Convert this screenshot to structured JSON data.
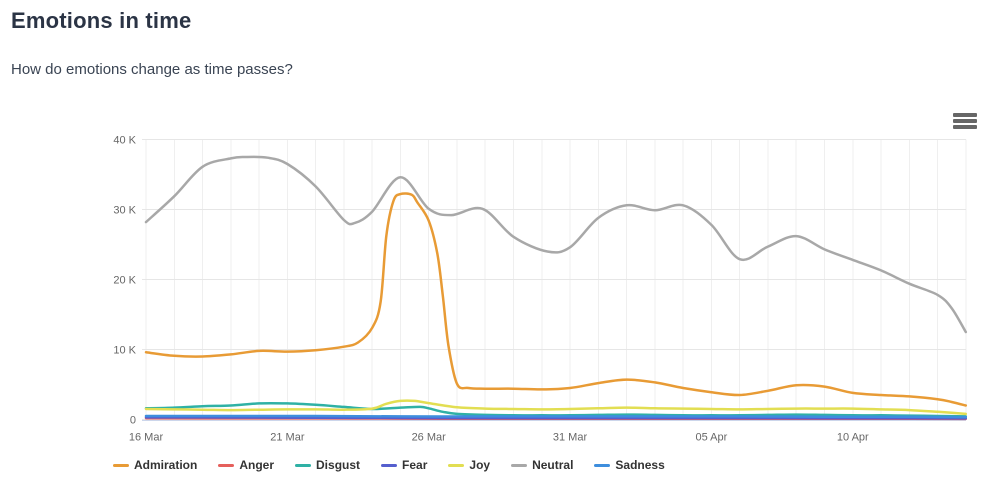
{
  "page": {
    "title": "Emotions in time",
    "subtitle": "How do emotions change as time passes?"
  },
  "chart": {
    "context_menu_icon": "hamburger-menu-icon"
  },
  "chart_data": {
    "type": "line",
    "title": "",
    "grid": true,
    "legend_position": "bottom-left",
    "x_axis": {
      "unit": "date (daily points)",
      "tick_labels": [
        "16 Mar",
        "21 Mar",
        "26 Mar",
        "31 Mar",
        "05 Apr",
        "10 Apr"
      ],
      "tick_days": [
        0,
        5,
        10,
        15,
        20,
        25
      ],
      "range_days": [
        0,
        29
      ],
      "start_date": "16 Mar",
      "end_date": "14 Apr"
    },
    "y_axis": {
      "unit": "thousands (K)",
      "tick_labels": [
        "0",
        "10 K",
        "20 K",
        "30 K",
        "40 K"
      ],
      "tick_values_k": [
        0,
        10,
        20,
        30,
        40
      ],
      "range_k": [
        0,
        42
      ]
    },
    "series": [
      {
        "name": "Admiration",
        "color": "#E89B35",
        "x_days": [
          0,
          1,
          2,
          3,
          4,
          5,
          6,
          7,
          7.5,
          8,
          8.3,
          8.5,
          8.75,
          9,
          9.4,
          9.6,
          10,
          10.3,
          10.5,
          10.7,
          11,
          11.4,
          12,
          13,
          14,
          15,
          16,
          17,
          18,
          19,
          20,
          21,
          22,
          23,
          24,
          25,
          26,
          27,
          28,
          28.5,
          29
        ],
        "y_k": [
          9.6,
          9.1,
          9.0,
          9.3,
          9.8,
          9.7,
          9.9,
          10.4,
          11.0,
          13.1,
          16.8,
          26.2,
          31.2,
          32.2,
          32.1,
          31.0,
          28.4,
          23.8,
          17.7,
          10.5,
          5.1,
          4.5,
          4.4,
          4.4,
          4.3,
          4.5,
          5.2,
          5.7,
          5.3,
          4.5,
          3.9,
          3.5,
          4.1,
          4.9,
          4.7,
          3.8,
          3.5,
          3.3,
          2.9,
          2.5,
          2.0
        ]
      },
      {
        "name": "Anger",
        "color": "#E5605C",
        "x_days": [
          0,
          3,
          6,
          9,
          12,
          15,
          18,
          21,
          24,
          27,
          29
        ],
        "y_k": [
          0.18,
          0.16,
          0.15,
          0.13,
          0.12,
          0.12,
          0.12,
          0.12,
          0.1,
          0.1,
          0.08
        ]
      },
      {
        "name": "Disgust",
        "color": "#2FB1A5",
        "x_days": [
          0,
          1,
          2,
          3,
          4,
          5,
          6,
          7,
          8,
          9,
          9.7,
          10,
          10.5,
          11,
          12,
          13,
          14,
          15,
          16,
          17,
          18,
          19,
          20,
          21,
          22,
          23,
          24,
          25,
          26,
          27,
          28,
          29
        ],
        "y_k": [
          1.6,
          1.7,
          1.9,
          2.0,
          2.3,
          2.3,
          2.1,
          1.8,
          1.5,
          1.7,
          1.8,
          1.6,
          1.1,
          0.8,
          0.65,
          0.6,
          0.6,
          0.6,
          0.65,
          0.7,
          0.65,
          0.6,
          0.6,
          0.6,
          0.65,
          0.7,
          0.65,
          0.6,
          0.6,
          0.55,
          0.5,
          0.45
        ]
      },
      {
        "name": "Fear",
        "color": "#555FCE",
        "x_days": [
          0,
          3,
          6,
          9,
          12,
          15,
          18,
          21,
          24,
          27,
          29
        ],
        "y_k": [
          0.3,
          0.28,
          0.26,
          0.22,
          0.2,
          0.2,
          0.2,
          0.2,
          0.18,
          0.18,
          0.15
        ]
      },
      {
        "name": "Joy",
        "color": "#E2DE52",
        "x_days": [
          0,
          1,
          2,
          3,
          4,
          5,
          6,
          7,
          8,
          8.5,
          9,
          9.5,
          10,
          11,
          12,
          13,
          14,
          15,
          16,
          17,
          18,
          19,
          20,
          21,
          22,
          23,
          24,
          25,
          26,
          27,
          28,
          29
        ],
        "y_k": [
          1.5,
          1.45,
          1.4,
          1.35,
          1.4,
          1.45,
          1.45,
          1.4,
          1.55,
          2.25,
          2.65,
          2.65,
          2.35,
          1.75,
          1.55,
          1.5,
          1.45,
          1.5,
          1.6,
          1.7,
          1.6,
          1.55,
          1.5,
          1.45,
          1.5,
          1.55,
          1.55,
          1.55,
          1.45,
          1.35,
          1.1,
          0.8
        ]
      },
      {
        "name": "Neutral",
        "color": "#A8A8A8",
        "x_days": [
          0,
          1,
          2,
          3,
          3.5,
          4.3,
          5,
          6,
          7,
          7.4,
          8,
          9,
          10,
          10.8,
          11.9,
          13,
          14.2,
          15,
          16,
          17,
          18,
          19,
          20,
          21,
          22,
          23,
          24,
          25,
          26,
          27,
          28,
          28.5,
          29
        ],
        "y_k": [
          28.2,
          31.9,
          36.1,
          37.3,
          37.5,
          37.4,
          36.5,
          33.3,
          28.5,
          28.1,
          29.7,
          34.6,
          30.1,
          29.2,
          30.1,
          26.1,
          24.0,
          24.6,
          28.8,
          30.6,
          29.9,
          30.6,
          27.8,
          22.9,
          24.7,
          26.2,
          24.3,
          22.8,
          21.3,
          19.4,
          17.8,
          15.9,
          12.5
        ]
      },
      {
        "name": "Sadness",
        "color": "#3E8EDD",
        "x_days": [
          0,
          3,
          6,
          9,
          12,
          15,
          18,
          21,
          24,
          27,
          29
        ],
        "y_k": [
          0.5,
          0.5,
          0.5,
          0.45,
          0.45,
          0.45,
          0.45,
          0.45,
          0.4,
          0.4,
          0.35
        ]
      }
    ]
  }
}
